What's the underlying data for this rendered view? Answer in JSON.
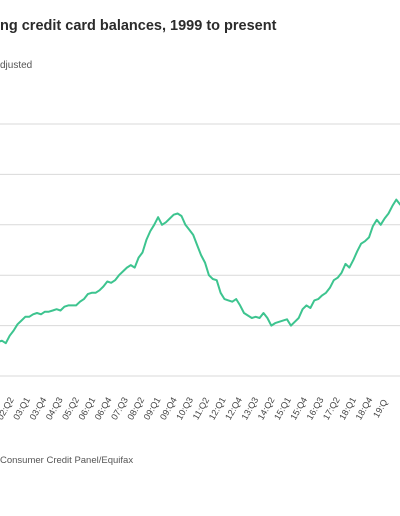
{
  "title": "ng credit card balances, 1999 to present",
  "subtitle": "djusted",
  "source": "Consumer Credit Panel/Equifax",
  "colors": {
    "line": "#3dc48f",
    "grid": "#d9d9d9"
  },
  "chart_data": {
    "type": "line",
    "title": "ng credit card balances, 1999 to present",
    "subtitle": "djusted",
    "gridlines": 6,
    "grid": true,
    "x_tick_labels": [
      "02:Q2",
      "03:Q1",
      "03:Q4",
      "04:Q3",
      "05:Q2",
      "06:Q1",
      "06:Q4",
      "07:Q3",
      "08:Q2",
      "09:Q1",
      "09:Q4",
      "10:Q3",
      "11:Q2",
      "12:Q1",
      "12:Q4",
      "13:Q3",
      "14:Q2",
      "15:Q1",
      "15:Q4",
      "16:Q3",
      "17:Q2",
      "18:Q1",
      "18:Q4",
      "19:Q"
    ],
    "series": [
      {
        "values": [
          0.135,
          0.14,
          0.13,
          0.16,
          0.18,
          0.205,
          0.22,
          0.235,
          0.235,
          0.245,
          0.25,
          0.245,
          0.255,
          0.255,
          0.26,
          0.265,
          0.26,
          0.275,
          0.28,
          0.28,
          0.28,
          0.295,
          0.305,
          0.325,
          0.33,
          0.33,
          0.34,
          0.355,
          0.375,
          0.37,
          0.38,
          0.4,
          0.415,
          0.43,
          0.44,
          0.43,
          0.47,
          0.49,
          0.54,
          0.575,
          0.6,
          0.63,
          0.6,
          0.61,
          0.625,
          0.64,
          0.645,
          0.635,
          0.6,
          0.58,
          0.56,
          0.52,
          0.48,
          0.45,
          0.4,
          0.385,
          0.38,
          0.33,
          0.305,
          0.3,
          0.295,
          0.305,
          0.28,
          0.25,
          0.24,
          0.23,
          0.235,
          0.23,
          0.25,
          0.23,
          0.2,
          0.21,
          0.215,
          0.22,
          0.225,
          0.2,
          0.215,
          0.23,
          0.265,
          0.28,
          0.27,
          0.3,
          0.305,
          0.32,
          0.33,
          0.35,
          0.38,
          0.39,
          0.41,
          0.445,
          0.43,
          0.46,
          0.495,
          0.525,
          0.535,
          0.55,
          0.595,
          0.62,
          0.6,
          0.625,
          0.645,
          0.675,
          0.7,
          0.68,
          0.695,
          0.73
        ]
      }
    ]
  }
}
